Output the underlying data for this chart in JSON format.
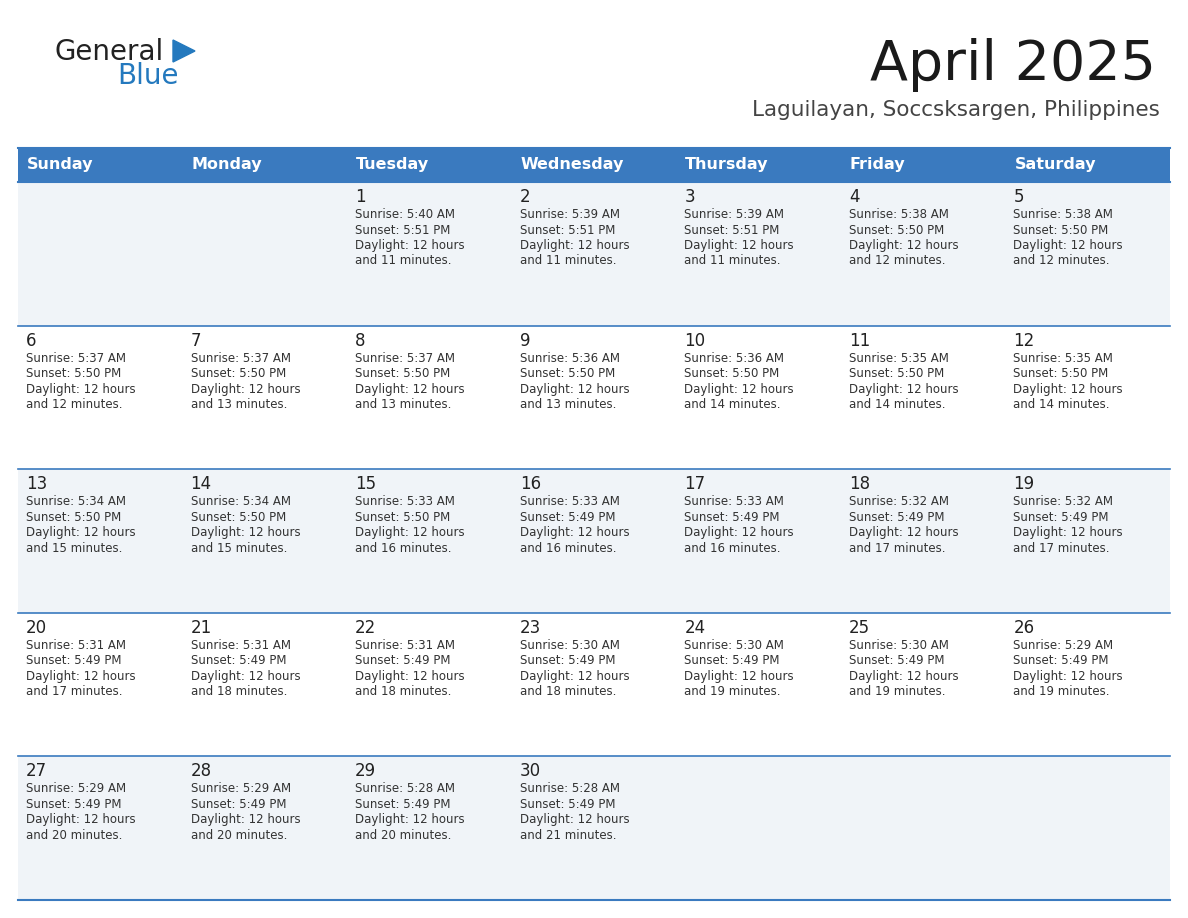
{
  "title": "April 2025",
  "subtitle": "Laguilayan, Soccsksargen, Philippines",
  "days_of_week": [
    "Sunday",
    "Monday",
    "Tuesday",
    "Wednesday",
    "Thursday",
    "Friday",
    "Saturday"
  ],
  "header_bg": "#3a7abf",
  "header_text_color": "#ffffff",
  "cell_bg_even": "#f0f4f8",
  "cell_bg_odd": "#ffffff",
  "day_num_color": "#222222",
  "text_color": "#333333",
  "line_color": "#3a7abf",
  "calendar": [
    [
      {
        "day": null,
        "sunrise": null,
        "sunset": null,
        "daylight": null
      },
      {
        "day": null,
        "sunrise": null,
        "sunset": null,
        "daylight": null
      },
      {
        "day": 1,
        "sunrise": "5:40 AM",
        "sunset": "5:51 PM",
        "daylight": "and 11 minutes."
      },
      {
        "day": 2,
        "sunrise": "5:39 AM",
        "sunset": "5:51 PM",
        "daylight": "and 11 minutes."
      },
      {
        "day": 3,
        "sunrise": "5:39 AM",
        "sunset": "5:51 PM",
        "daylight": "and 11 minutes."
      },
      {
        "day": 4,
        "sunrise": "5:38 AM",
        "sunset": "5:50 PM",
        "daylight": "and 12 minutes."
      },
      {
        "day": 5,
        "sunrise": "5:38 AM",
        "sunset": "5:50 PM",
        "daylight": "and 12 minutes."
      }
    ],
    [
      {
        "day": 6,
        "sunrise": "5:37 AM",
        "sunset": "5:50 PM",
        "daylight": "and 12 minutes."
      },
      {
        "day": 7,
        "sunrise": "5:37 AM",
        "sunset": "5:50 PM",
        "daylight": "and 13 minutes."
      },
      {
        "day": 8,
        "sunrise": "5:37 AM",
        "sunset": "5:50 PM",
        "daylight": "and 13 minutes."
      },
      {
        "day": 9,
        "sunrise": "5:36 AM",
        "sunset": "5:50 PM",
        "daylight": "and 13 minutes."
      },
      {
        "day": 10,
        "sunrise": "5:36 AM",
        "sunset": "5:50 PM",
        "daylight": "and 14 minutes."
      },
      {
        "day": 11,
        "sunrise": "5:35 AM",
        "sunset": "5:50 PM",
        "daylight": "and 14 minutes."
      },
      {
        "day": 12,
        "sunrise": "5:35 AM",
        "sunset": "5:50 PM",
        "daylight": "and 14 minutes."
      }
    ],
    [
      {
        "day": 13,
        "sunrise": "5:34 AM",
        "sunset": "5:50 PM",
        "daylight": "and 15 minutes."
      },
      {
        "day": 14,
        "sunrise": "5:34 AM",
        "sunset": "5:50 PM",
        "daylight": "and 15 minutes."
      },
      {
        "day": 15,
        "sunrise": "5:33 AM",
        "sunset": "5:50 PM",
        "daylight": "and 16 minutes."
      },
      {
        "day": 16,
        "sunrise": "5:33 AM",
        "sunset": "5:49 PM",
        "daylight": "and 16 minutes."
      },
      {
        "day": 17,
        "sunrise": "5:33 AM",
        "sunset": "5:49 PM",
        "daylight": "and 16 minutes."
      },
      {
        "day": 18,
        "sunrise": "5:32 AM",
        "sunset": "5:49 PM",
        "daylight": "and 17 minutes."
      },
      {
        "day": 19,
        "sunrise": "5:32 AM",
        "sunset": "5:49 PM",
        "daylight": "and 17 minutes."
      }
    ],
    [
      {
        "day": 20,
        "sunrise": "5:31 AM",
        "sunset": "5:49 PM",
        "daylight": "and 17 minutes."
      },
      {
        "day": 21,
        "sunrise": "5:31 AM",
        "sunset": "5:49 PM",
        "daylight": "and 18 minutes."
      },
      {
        "day": 22,
        "sunrise": "5:31 AM",
        "sunset": "5:49 PM",
        "daylight": "and 18 minutes."
      },
      {
        "day": 23,
        "sunrise": "5:30 AM",
        "sunset": "5:49 PM",
        "daylight": "and 18 minutes."
      },
      {
        "day": 24,
        "sunrise": "5:30 AM",
        "sunset": "5:49 PM",
        "daylight": "and 19 minutes."
      },
      {
        "day": 25,
        "sunrise": "5:30 AM",
        "sunset": "5:49 PM",
        "daylight": "and 19 minutes."
      },
      {
        "day": 26,
        "sunrise": "5:29 AM",
        "sunset": "5:49 PM",
        "daylight": "and 19 minutes."
      }
    ],
    [
      {
        "day": 27,
        "sunrise": "5:29 AM",
        "sunset": "5:49 PM",
        "daylight": "and 20 minutes."
      },
      {
        "day": 28,
        "sunrise": "5:29 AM",
        "sunset": "5:49 PM",
        "daylight": "and 20 minutes."
      },
      {
        "day": 29,
        "sunrise": "5:28 AM",
        "sunset": "5:49 PM",
        "daylight": "and 20 minutes."
      },
      {
        "day": 30,
        "sunrise": "5:28 AM",
        "sunset": "5:49 PM",
        "daylight": "and 21 minutes."
      },
      {
        "day": null,
        "sunrise": null,
        "sunset": null,
        "daylight": null
      },
      {
        "day": null,
        "sunrise": null,
        "sunset": null,
        "daylight": null
      },
      {
        "day": null,
        "sunrise": null,
        "sunset": null,
        "daylight": null
      }
    ]
  ],
  "logo_color_general": "#222222",
  "logo_color_blue": "#2479be",
  "logo_triangle_color": "#2479be"
}
